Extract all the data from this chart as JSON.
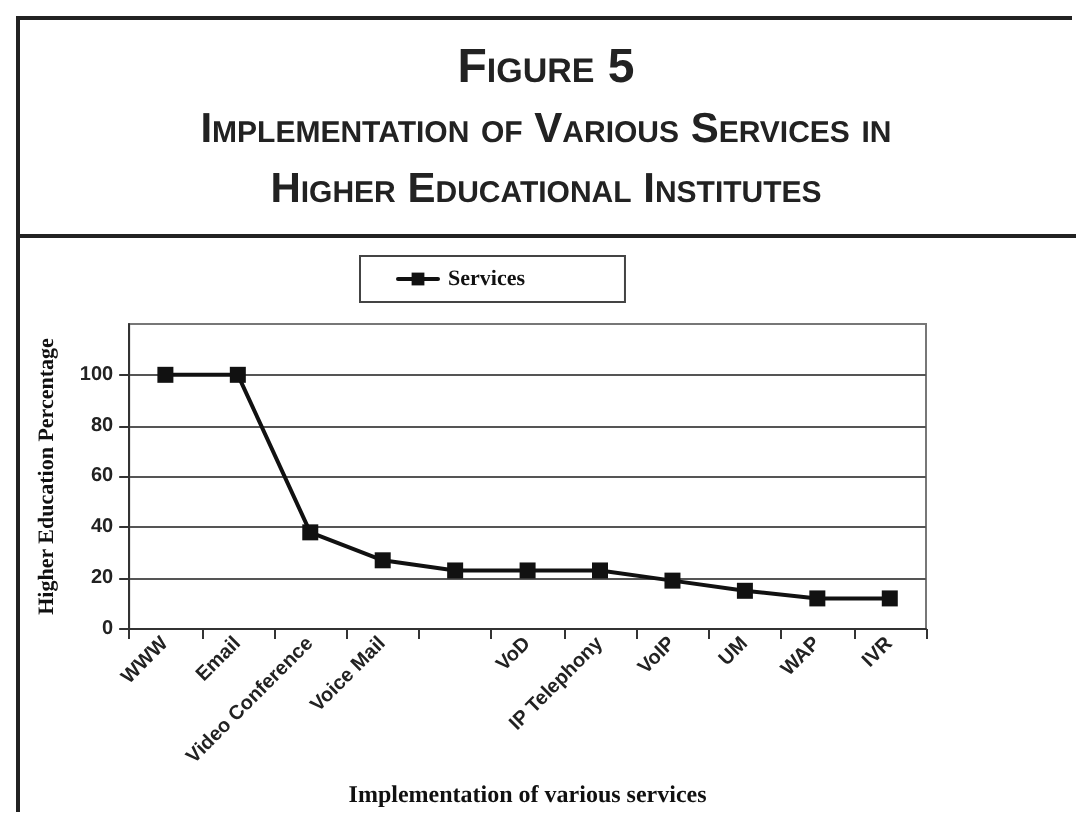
{
  "chart_data": {
    "type": "line",
    "title": "Figure 5",
    "subtitle": "Implementation of Various Services in Higher Educational Institutes",
    "xlabel": "Implementation of various services",
    "ylabel": "Higher Education Percentage",
    "categories": [
      "WWW",
      "Email",
      "Video Conference",
      "Voice Mail",
      null,
      "VoD",
      "IP Telephony",
      "VoIP",
      "UM",
      "WAP",
      "IVR"
    ],
    "series": [
      {
        "name": "Services",
        "color": "#111111",
        "values": [
          100,
          100,
          38,
          27,
          23,
          23,
          23,
          19,
          15,
          12,
          12
        ]
      }
    ],
    "ylim": [
      0,
      120
    ],
    "yticks": [
      0,
      20,
      40,
      60,
      80,
      100
    ],
    "grid": "y",
    "legend": "top",
    "marker": "square",
    "line_style": "solid"
  }
}
